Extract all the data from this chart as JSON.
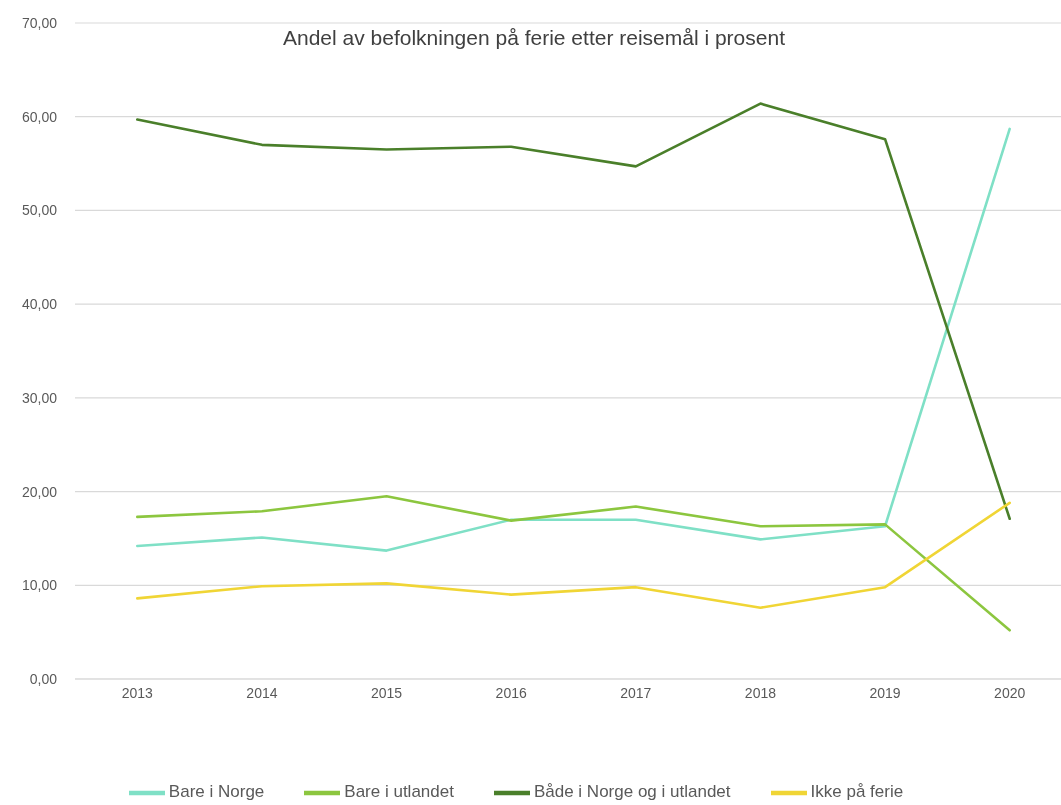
{
  "chart_data": {
    "type": "line",
    "title": "Andel av befolkningen på ferie etter reisemål i prosent",
    "categories": [
      "2013",
      "2014",
      "2015",
      "2016",
      "2017",
      "2018",
      "2019",
      "2020"
    ],
    "series": [
      {
        "name": "Bare i Norge",
        "color": "#7fe0c6",
        "values": [
          14.2,
          15.1,
          13.7,
          17.0,
          17.0,
          14.9,
          16.3,
          58.7
        ]
      },
      {
        "name": "Bare i utlandet",
        "color": "#8cc63f",
        "values": [
          17.3,
          17.9,
          19.5,
          16.9,
          18.4,
          16.3,
          16.5,
          5.2
        ]
      },
      {
        "name": "Både i Norge og i utlandet",
        "color": "#4a7f2a",
        "values": [
          59.7,
          57.0,
          56.5,
          56.8,
          54.7,
          61.4,
          57.6,
          17.1
        ]
      },
      {
        "name": "Ikke på ferie",
        "color": "#f0d535",
        "values": [
          8.6,
          9.9,
          10.2,
          9.0,
          9.8,
          7.6,
          9.8,
          18.8
        ]
      }
    ],
    "ylim": [
      0,
      70
    ],
    "yticks": [
      {
        "value": 0,
        "label": "0,00"
      },
      {
        "value": 10,
        "label": "10,00"
      },
      {
        "value": 20,
        "label": "20,00"
      },
      {
        "value": 30,
        "label": "30,00"
      },
      {
        "value": 40,
        "label": "40,00"
      },
      {
        "value": 50,
        "label": "50,00"
      },
      {
        "value": 60,
        "label": "60,00"
      },
      {
        "value": 70,
        "label": "70,00"
      }
    ],
    "grid": "y",
    "legend": "bottom",
    "marker": "none",
    "line_style": "solid"
  }
}
